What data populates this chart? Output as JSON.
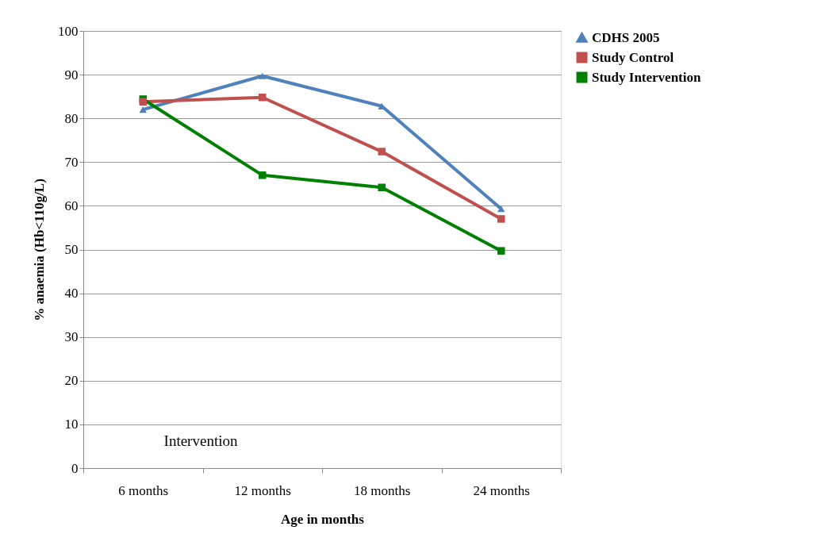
{
  "chart_data": {
    "type": "line",
    "xlabel": "Age in months",
    "ylabel": "% anaemia (Hb<110g/L)",
    "categories": [
      "6 months",
      "12 months",
      "18 months",
      "24 months"
    ],
    "series": [
      {
        "name": "CDHS 2005",
        "color": "#4f81bd",
        "marker": "triangle",
        "values": [
          82,
          89.7,
          82.8,
          59.3
        ]
      },
      {
        "name": "Study Control",
        "color": "#c0504d",
        "marker": "square",
        "values": [
          83.8,
          84.8,
          72.4,
          57
        ]
      },
      {
        "name": "Study Intervention",
        "color": "#008000",
        "marker": "square",
        "values": [
          84.4,
          67,
          64.2,
          49.7
        ]
      }
    ],
    "ylim": [
      0,
      100
    ],
    "yticks": [
      0,
      10,
      20,
      30,
      40,
      50,
      60,
      70,
      80,
      90,
      100
    ],
    "grid": "y",
    "legend": "right",
    "line_style": "solid",
    "annotations": [
      "Intervention"
    ]
  }
}
